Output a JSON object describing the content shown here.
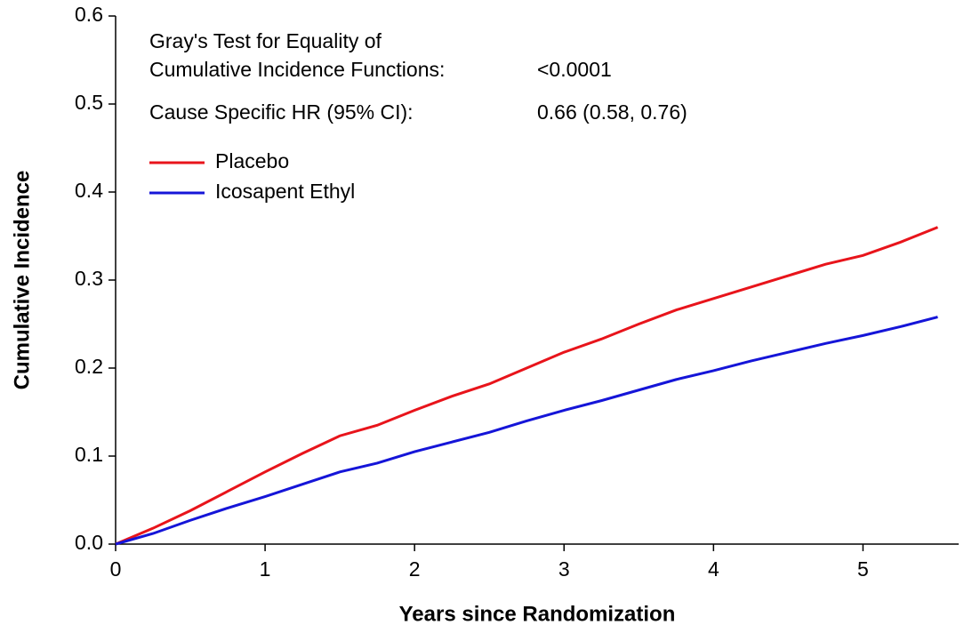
{
  "chart_data": {
    "type": "line",
    "xlabel": "Years since Randomization",
    "ylabel": "Cumulative Incidence",
    "annotations": [
      "Gray's Test for Equality of",
      "Cumulative Incidence Functions:",
      "<0.0001",
      "Cause Specific HR (95% CI):",
      "0.66 (0.58, 0.76)"
    ],
    "x": [
      0,
      0.25,
      0.5,
      0.75,
      1,
      1.25,
      1.5,
      1.75,
      2,
      2.25,
      2.5,
      2.75,
      3,
      3.25,
      3.5,
      3.75,
      4,
      4.25,
      4.5,
      4.75,
      5,
      5.25,
      5.5
    ],
    "series": [
      {
        "name": "Placebo",
        "color": "#e8141b",
        "values": [
          0,
          0.018,
          0.038,
          0.06,
          0.082,
          0.103,
          0.123,
          0.135,
          0.152,
          0.168,
          0.182,
          0.2,
          0.218,
          0.233,
          0.25,
          0.266,
          0.279,
          0.292,
          0.305,
          0.318,
          0.328,
          0.343,
          0.36
        ]
      },
      {
        "name": "Icosapent Ethyl",
        "color": "#1515d8",
        "values": [
          0,
          0.012,
          0.027,
          0.041,
          0.054,
          0.068,
          0.082,
          0.092,
          0.105,
          0.116,
          0.127,
          0.14,
          0.152,
          0.163,
          0.175,
          0.187,
          0.197,
          0.208,
          0.218,
          0.228,
          0.237,
          0.247,
          0.258
        ]
      }
    ],
    "xlim": [
      0,
      5.64
    ],
    "xticks": [
      0,
      1,
      2,
      3,
      4,
      5
    ],
    "ylim": [
      0,
      0.6
    ],
    "yticks": [
      {
        "value": 0,
        "label": "0.0"
      },
      0.1,
      0.2,
      0.3,
      0.4,
      0.5,
      0.6
    ],
    "legend": "upper left",
    "grid": false
  }
}
